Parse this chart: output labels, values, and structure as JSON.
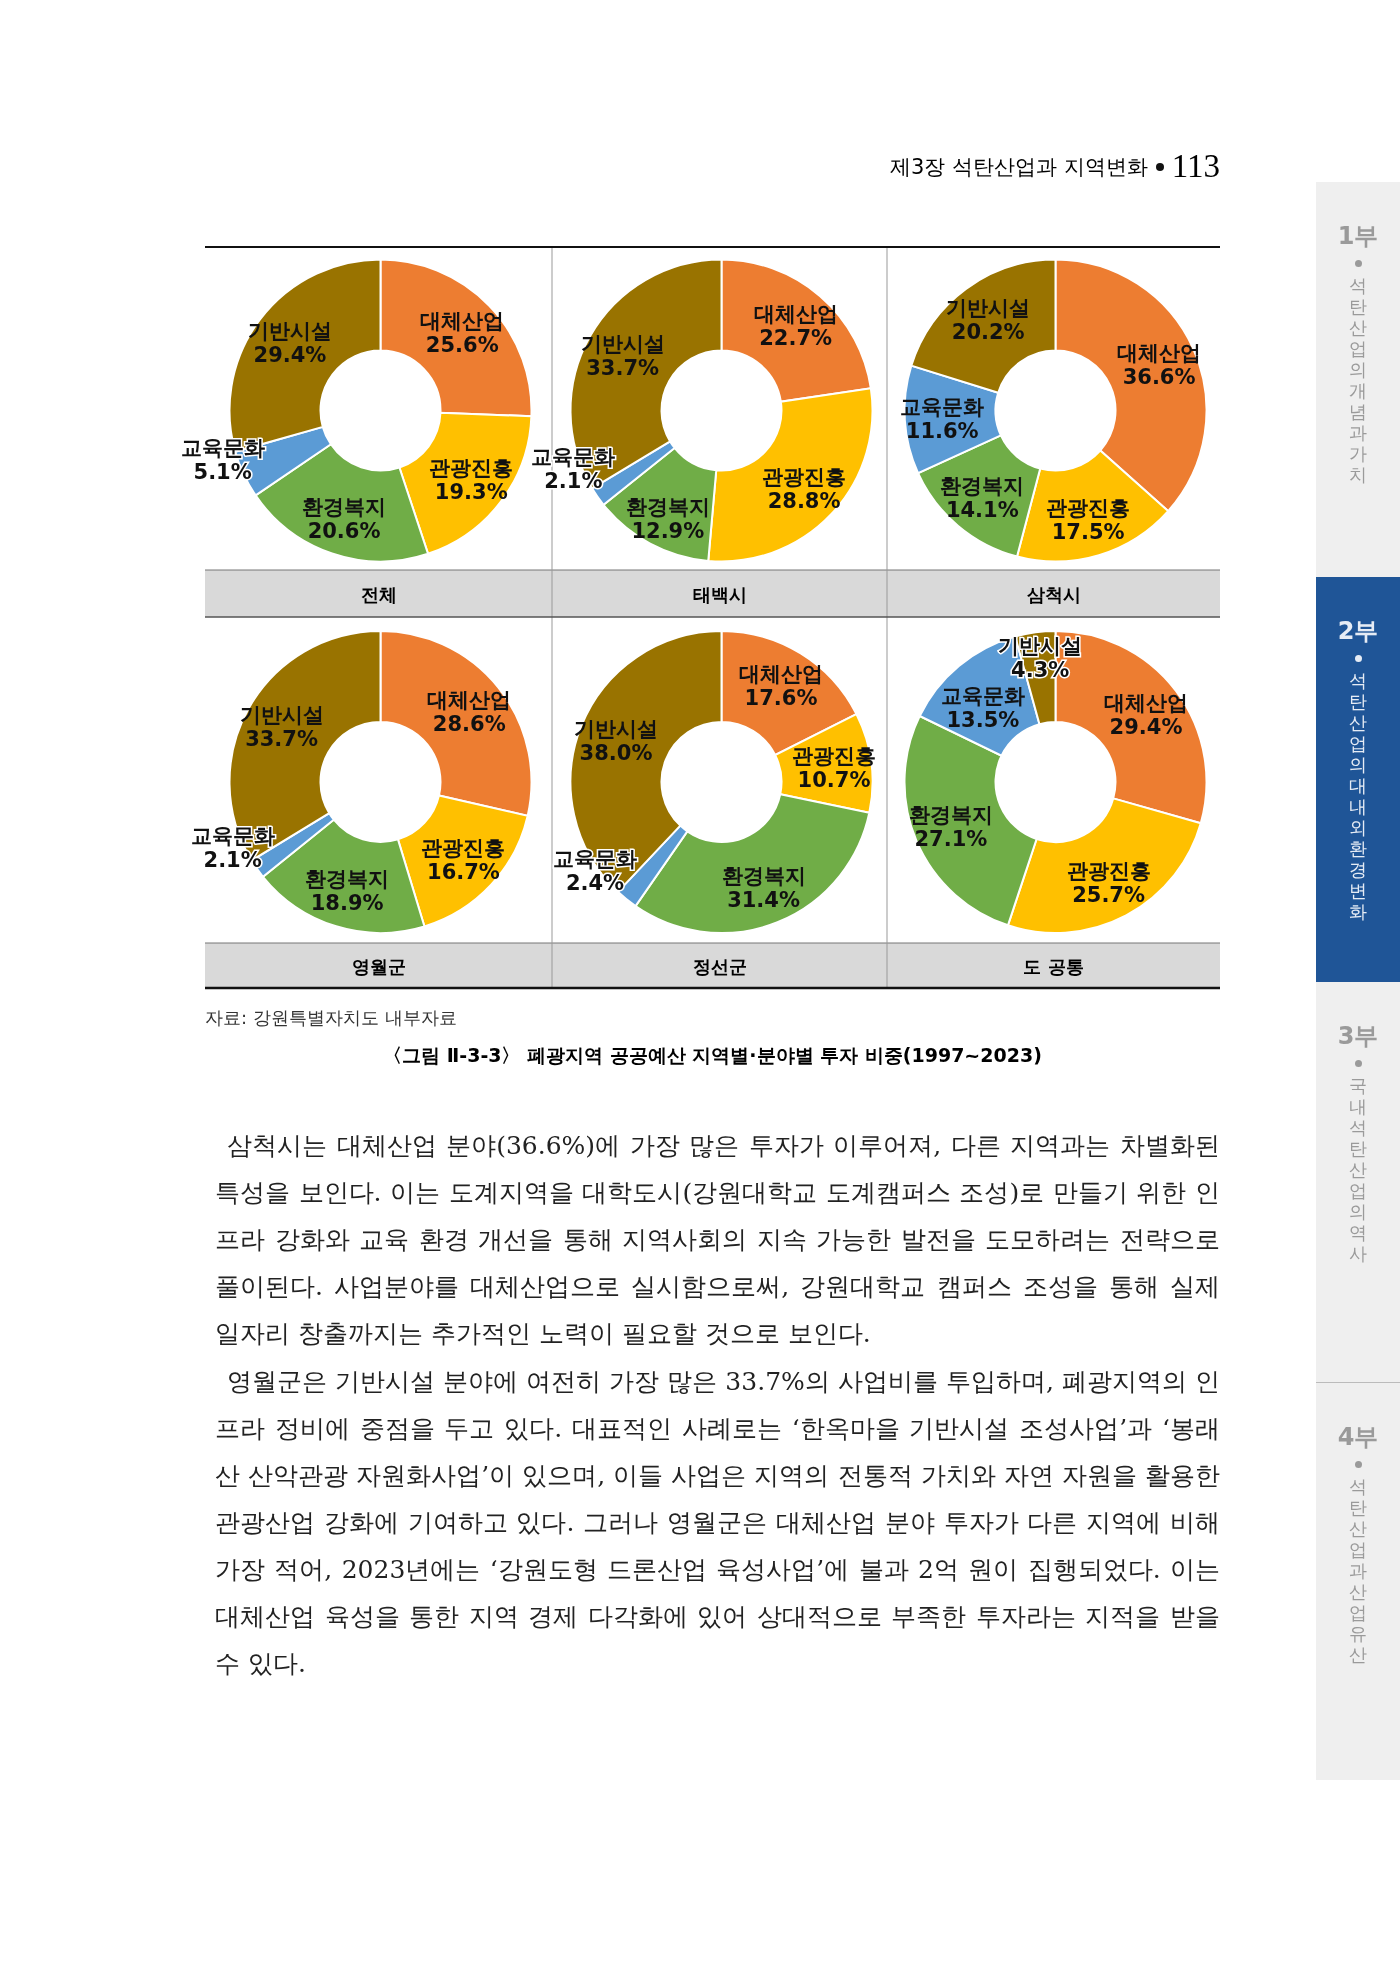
{
  "chart_data": [
    {
      "type": "donut",
      "title": "전체",
      "categories": [
        "대체산업",
        "관광진흥",
        "환경복지",
        "교육문화",
        "기반시설"
      ],
      "values": [
        25.6,
        19.3,
        20.6,
        5.1,
        29.4
      ],
      "value_labels": [
        "25.6%",
        "19.3%",
        "20.6%",
        "5.1%",
        "29.4%"
      ],
      "colors": [
        "#ed7d31",
        "#ffc000",
        "#70ad47",
        "#5b9bd5",
        "#997300"
      ],
      "annotations": [
        "제3장  석탄산업과 지역변화",
        "113",
        "1부",
        "석탄산업의 개념과 가치",
        "2부",
        "석탄산업의 대내외 환경변화",
        "3부",
        "국내 석탄산업의 역사",
        "4부",
        "석탄산업과 산업유산"
      ]
    },
    {
      "type": "donut",
      "title": "태백시",
      "categories": [
        "대체산업",
        "관광진흥",
        "환경복지",
        "교육문화",
        "기반시설"
      ],
      "values": [
        22.7,
        28.8,
        12.9,
        2.1,
        33.7
      ],
      "value_labels": [
        "22.7%",
        "28.8%",
        "12.9%",
        "2.1%",
        "33.7%"
      ],
      "colors": [
        "#ed7d31",
        "#ffc000",
        "#70ad47",
        "#5b9bd5",
        "#997300"
      ]
    },
    {
      "type": "donut",
      "title": "삼척시",
      "categories": [
        "대체산업",
        "관광진흥",
        "환경복지",
        "교육문화",
        "기반시설"
      ],
      "values": [
        36.6,
        17.5,
        14.1,
        11.6,
        20.2
      ],
      "value_labels": [
        "36.6%",
        "17.5%",
        "14.1%",
        "11.6%",
        "20.2%"
      ],
      "colors": [
        "#ed7d31",
        "#ffc000",
        "#70ad47",
        "#5b9bd5",
        "#997300"
      ]
    },
    {
      "type": "donut",
      "title": "영월군",
      "categories": [
        "대체산업",
        "관광진흥",
        "환경복지",
        "교육문화",
        "기반시설"
      ],
      "values": [
        28.6,
        16.7,
        18.9,
        2.1,
        33.7
      ],
      "value_labels": [
        "28.6%",
        "16.7%",
        "18.9%",
        "2.1%",
        "33.7%"
      ],
      "colors": [
        "#ed7d31",
        "#ffc000",
        "#70ad47",
        "#5b9bd5",
        "#997300"
      ]
    },
    {
      "type": "donut",
      "title": "정선군",
      "categories": [
        "대체산업",
        "관광진흥",
        "환경복지",
        "교육문화",
        "기반시설"
      ],
      "values": [
        17.6,
        10.7,
        31.4,
        2.4,
        38.0
      ],
      "value_labels": [
        "17.6%",
        "10.7%",
        "31.4%",
        "2.4%",
        "38.0%"
      ],
      "colors": [
        "#ed7d31",
        "#ffc000",
        "#70ad47",
        "#5b9bd5",
        "#997300"
      ]
    },
    {
      "type": "donut",
      "title": "도 공통",
      "categories": [
        "대체산업",
        "관광진흥",
        "환경복지",
        "교육문화",
        "기반시설"
      ],
      "values": [
        29.4,
        25.7,
        27.1,
        13.5,
        4.3
      ],
      "value_labels": [
        "29.4%",
        "25.7%",
        "27.1%",
        "13.5%",
        "4.3%"
      ],
      "colors": [
        "#ed7d31",
        "#ffc000",
        "#70ad47",
        "#5b9bd5",
        "#997300"
      ],
      "annotations": [
        "자료: 강원특별자치도 내부자료",
        "〈그림 Ⅱ-3-3〉 폐광지역 공공예산 지역별·분야별 투자 비중(1997~2023)",
        "삼척시는 대체산업 분야(36.6%)에 가장 많은 투자가 이루어져, 다른 지역과는 차별화된 특성을 보인다. 이는 도계지역을 대학도시(강원대학교 도계캠퍼스 조성)로 만들기 위한 인프라 강화와 교육 환경 개선을 통해 지역사회의 지속 가능한 발전을 도모하려는 전략으로 풀이된다. 사업분야를 대체산업으로 실시함으로써, 강원대학교 캠퍼스 조성을 통해 실제 일자리 창출까지는 추가적인 노력이 필요할 것으로 보인다.",
        "영월군은 기반시설 분야에 여전히 가장 많은 33.7%의 사업비를 투입하며, 폐광지역의 인프라 정비에 중점을 두고 있다. 대표적인 사례로는 ‘한옥마을 기반시설 조성사업’과 ‘봉래산 산악관광 자원화사업’이 있으며, 이들 사업은 지역의 전통적 가치와 자연 자원을 활용한 관광산업 강화에 기여하고 있다. 그러나 영월군은 대체산업 분야 투자가 다른 지역에 비해 가장 적어, 2023년에는 ‘강원도형 드론산업 육성사업’에 불과 2억 원이 집행되었다. 이는 대체산업 육성을 통한 지역 경제 다각화에 있어 상대적으로 부족한 투자라는 지적을 받을 수 있다."
      ]
    }
  ]
}
